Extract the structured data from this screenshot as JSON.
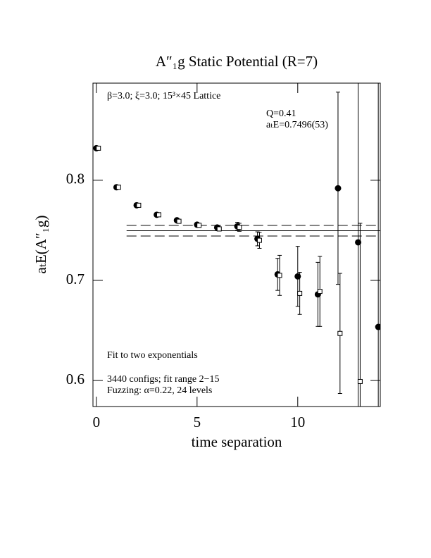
{
  "chart_data": {
    "type": "scatter",
    "title": "A″₁g Static Potential (R=7)",
    "x_label": "time separation",
    "y_label": "aₜE(A″₁g)",
    "annotations": [
      "β=3.0; ξ=3.0; 15³×45 Lattice",
      "Q=0.41",
      "aₜE=0.7496(53)",
      "Fit to two exponentials",
      "3440 configs; fit range 2−15",
      "Fuzzing: α=0.22, 24 levels"
    ],
    "xlim": [
      -0.17,
      14.1
    ],
    "xticks": [
      0,
      5,
      10
    ],
    "ylim": [
      0.574,
      0.897
    ],
    "yticks": [
      0.6,
      0.7,
      0.8
    ],
    "fit": {
      "value": 0.7496,
      "error": 0.0053,
      "x": [
        1.5,
        14.1
      ]
    },
    "series": [
      {
        "marker": "circle",
        "color": "#000000",
        "x": [
          0,
          1,
          2,
          3,
          4,
          5,
          6,
          7,
          8,
          9,
          10,
          11,
          12,
          13,
          14
        ],
        "values": [
          0.832,
          0.793,
          0.775,
          0.7655,
          0.76,
          0.7556,
          0.7528,
          0.754,
          0.7415,
          0.706,
          0.704,
          0.686,
          0.792,
          0.738,
          0.6535
        ],
        "errors": [
          0.001,
          0.001,
          0.001,
          0.001,
          0.001,
          0.001,
          0.002,
          0.004,
          0.007,
          0.016,
          0.03,
          0.032,
          0.096,
          0.25,
          0.25
        ]
      },
      {
        "marker": "square",
        "color": "#000000",
        "x": [
          0.1,
          1.1,
          2.1,
          3.1,
          4.1,
          5.1,
          6.1,
          7.1,
          8.1,
          9.1,
          10.1,
          11.1,
          12.1,
          13.1
        ],
        "values": [
          0.832,
          0.793,
          0.775,
          0.7655,
          0.759,
          0.755,
          0.7514,
          0.753,
          0.74,
          0.705,
          0.687,
          0.689,
          0.647,
          0.599
        ],
        "errors": [
          0.001,
          0.001,
          0.001,
          0.001,
          0.001,
          0.001,
          0.002,
          0.004,
          0.008,
          0.02,
          0.021,
          0.035,
          0.06,
          0.158
        ]
      }
    ]
  }
}
